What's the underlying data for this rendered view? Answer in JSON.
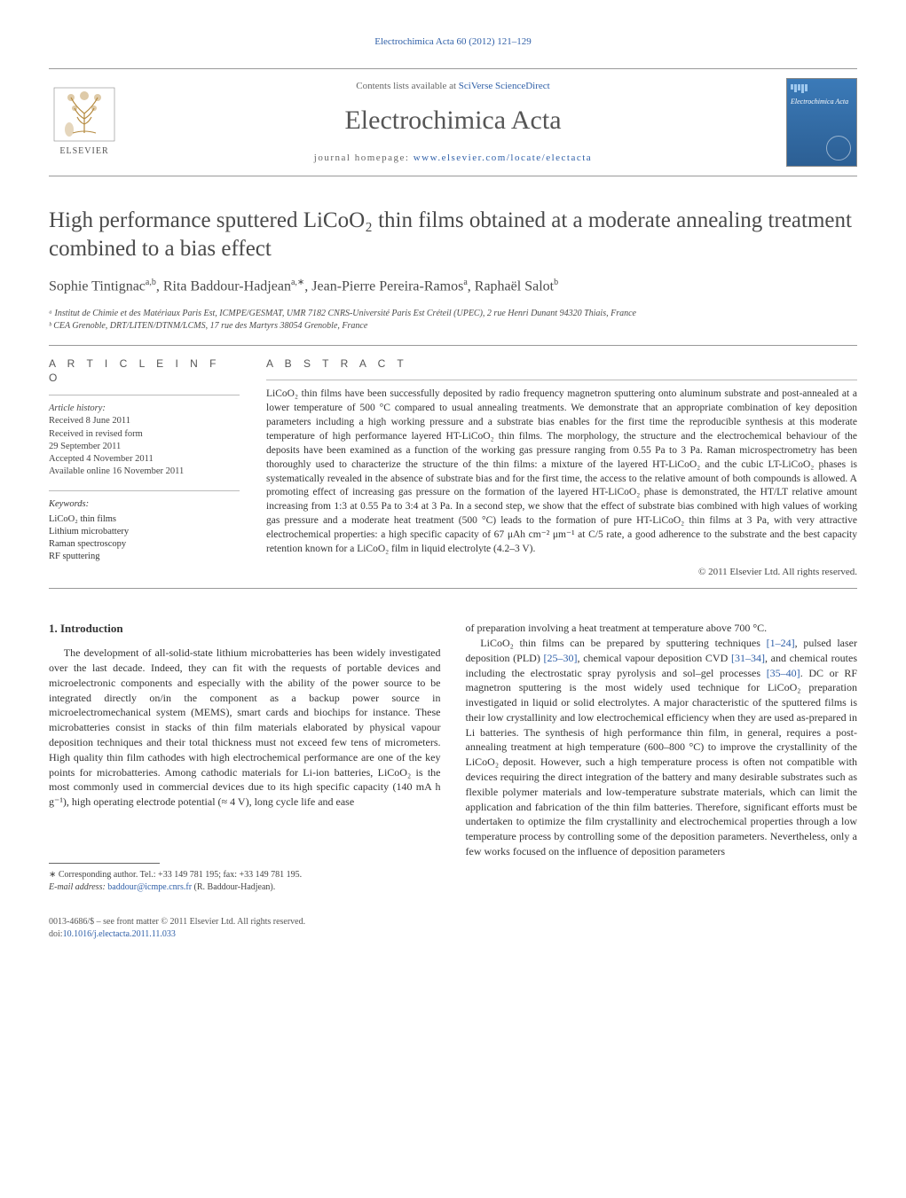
{
  "running_head": "Electrochimica Acta 60 (2012) 121–129",
  "masthead": {
    "contents_prefix": "Contents lists available at ",
    "contents_link": "SciVerse ScienceDirect",
    "journal_name": "Electrochimica Acta",
    "homepage_prefix": "journal homepage: ",
    "homepage_link": "www.elsevier.com/locate/electacta",
    "publisher": "ELSEVIER",
    "cover_title": "Electrochimica Acta"
  },
  "article": {
    "title": "High performance sputtered LiCoO₂ thin films obtained at a moderate annealing treatment combined to a bias effect",
    "authors_html": "Sophie Tintignac<sup>a,b</sup>, Rita Baddour-Hadjean<sup>a,∗</sup>, Jean-Pierre Pereira-Ramos<sup>a</sup>, Raphaël Salot<sup>b</sup>",
    "affiliations": [
      "ᵃ Institut de Chimie et des Matériaux Paris Est, ICMPE/GESMAT, UMR 7182 CNRS-Université Paris Est Créteil (UPEC), 2 rue Henri Dunant 94320 Thiais, France",
      "ᵇ CEA Grenoble, DRT/LITEN/DTNM/LCMS, 17 rue des Martyrs 38054 Grenoble, France"
    ]
  },
  "info_head": "A R T I C L E   I N F O",
  "abstract_head": "A B S T R A C T",
  "history": {
    "label": "Article history:",
    "received": "Received 8 June 2011",
    "revised": "Received in revised form",
    "revised_date": "29 September 2011",
    "accepted": "Accepted 4 November 2011",
    "online": "Available online 16 November 2011"
  },
  "keywords": {
    "label": "Keywords:",
    "items": [
      "LiCoO₂ thin films",
      "Lithium microbattery",
      "Raman spectroscopy",
      "RF sputtering"
    ]
  },
  "abstract_text": "LiCoO₂ thin films have been successfully deposited by radio frequency magnetron sputtering onto aluminum substrate and post-annealed at a lower temperature of 500 °C compared to usual annealing treatments. We demonstrate that an appropriate combination of key deposition parameters including a high working pressure and a substrate bias enables for the first time the reproducible synthesis at this moderate temperature of high performance layered HT-LiCoO₂ thin films. The morphology, the structure and the electrochemical behaviour of the deposits have been examined as a function of the working gas pressure ranging from 0.55 Pa to 3 Pa. Raman microspectrometry has been thoroughly used to characterize the structure of the thin films: a mixture of the layered HT-LiCoO₂ and the cubic LT-LiCoO₂ phases is systematically revealed in the absence of substrate bias and for the first time, the access to the relative amount of both compounds is allowed. A promoting effect of increasing gas pressure on the formation of the layered HT-LiCoO₂ phase is demonstrated, the HT/LT relative amount increasing from 1:3 at 0.55 Pa to 3:4 at 3 Pa. In a second step, we show that the effect of substrate bias combined with high values of working gas pressure and a moderate heat treatment (500 °C) leads to the formation of pure HT-LiCoO₂ thin films at 3 Pa, with very attractive electrochemical properties: a high specific capacity of 67 μAh cm⁻² μm⁻¹ at C/5 rate, a good adherence to the substrate and the best capacity retention known for a LiCoO₂ film in liquid electrolyte (4.2–3 V).",
  "copyright": "© 2011 Elsevier Ltd. All rights reserved.",
  "section1_head": "1. Introduction",
  "body": {
    "col1_p1": "The development of all-solid-state lithium microbatteries has been widely investigated over the last decade. Indeed, they can fit with the requests of portable devices and microelectronic components and especially with the ability of the power source to be integrated directly on/in the component as a backup power source in microelectromechanical system (MEMS), smart cards and biochips for instance. These microbatteries consist in stacks of thin film materials elaborated by physical vapour deposition techniques and their total thickness must not exceed few tens of micrometers. High quality thin film cathodes with high electrochemical performance are one of the key points for microbatteries. Among cathodic materials for Li-ion batteries, LiCoO₂ is the most commonly used in commercial devices due to its high specific capacity (140 mA h g⁻¹), high operating electrode potential (≈ 4 V), long cycle life and ease",
    "col2_p1_pre": "of preparation involving a heat treatment at temperature above 700 °C.",
    "col2_p2_parts": {
      "a": "LiCoO₂ thin films can be prepared by sputtering techniques ",
      "link1": "[1–24]",
      "b": ", pulsed laser deposition (PLD) ",
      "link2": "[25–30]",
      "c": ", chemical vapour deposition CVD ",
      "link3": "[31–34]",
      "d": ", and chemical routes including the electrostatic spray pyrolysis and sol–gel processes ",
      "link4": "[35–40]",
      "e": ". DC or RF magnetron sputtering is the most widely used technique for LiCoO₂ preparation investigated in liquid or solid electrolytes. A major characteristic of the sputtered films is their low crystallinity and low electrochemical efficiency when they are used as-prepared in Li batteries. The synthesis of high performance thin film, in general, requires a post-annealing treatment at high temperature (600–800 °C) to improve the crystallinity of the LiCoO₂ deposit. However, such a high temperature process is often not compatible with devices requiring the direct integration of the battery and many desirable substrates such as flexible polymer materials and low-temperature substrate materials, which can limit the application and fabrication of the thin film batteries. Therefore, significant efforts must be undertaken to optimize the film crystallinity and electrochemical properties through a low temperature process by controlling some of the deposition parameters. Nevertheless, only a few works focused on the influence of deposition parameters"
    }
  },
  "footnote": {
    "marker": "∗",
    "line1": "Corresponding author. Tel.: +33 149 781 195; fax: +33 149 781 195.",
    "email_label": "E-mail address: ",
    "email": "baddour@icmpe.cnrs.fr",
    "email_suffix": " (R. Baddour-Hadjean)."
  },
  "footer": {
    "issn_line": "0013-4686/$ – see front matter © 2011 Elsevier Ltd. All rights reserved.",
    "doi_prefix": "doi:",
    "doi": "10.1016/j.electacta.2011.11.033"
  },
  "colors": {
    "link": "#3060a8",
    "text": "#333333",
    "rule": "#999999",
    "cover_bg_top": "#3b7ab8",
    "cover_bg_bot": "#2c5f94"
  }
}
